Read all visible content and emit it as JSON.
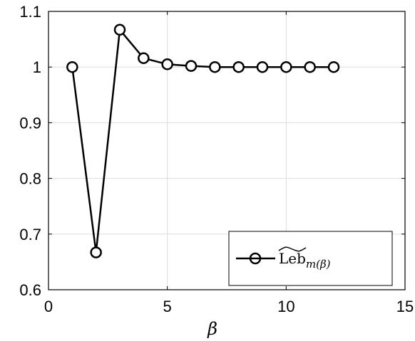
{
  "chart_data": {
    "type": "line",
    "x": [
      1,
      2,
      3,
      4,
      5,
      6,
      7,
      8,
      9,
      10,
      11,
      12
    ],
    "series": [
      {
        "name": "Leb",
        "name_subscript": "m(β)",
        "values": [
          1.0,
          0.667,
          1.067,
          1.016,
          1.005,
          1.002,
          1.0,
          1.0,
          1.0,
          1.0,
          1.0,
          1.0
        ],
        "color": "#000000",
        "marker": "circle-open"
      }
    ],
    "xlabel": "β",
    "ylabel": "",
    "xlim": [
      0,
      15
    ],
    "ylim": [
      0.6,
      1.1
    ],
    "xticks": [
      0,
      5,
      10,
      15
    ],
    "yticks": [
      0.6,
      0.7,
      0.8,
      0.9,
      1.0,
      1.1
    ],
    "xtick_labels": [
      "0",
      "5",
      "10",
      "15"
    ],
    "ytick_labels": [
      "0.6",
      "0.7",
      "0.8",
      "0.9",
      "1",
      "1.1"
    ],
    "grid": true,
    "legend_position": "bottom-right"
  }
}
